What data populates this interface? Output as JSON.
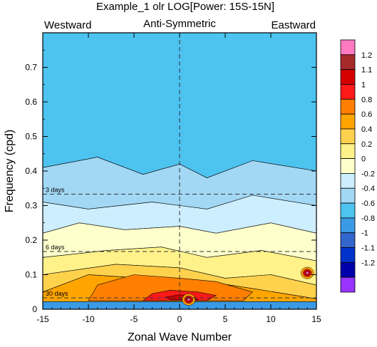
{
  "chart_data": {
    "type": "heatmap",
    "title": "Example_1 olr LOG[Power: 15S-15N]",
    "subtitle": "Anti-Symmetric",
    "left_label": "Westward",
    "right_label": "Eastward",
    "xlabel": "Zonal Wave Number",
    "ylabel": "Frequency (cpd)",
    "xlim": [
      -15,
      15
    ],
    "ylim": [
      0,
      0.8
    ],
    "x_ticks": [
      -15,
      -10,
      -5,
      0,
      5,
      10,
      15
    ],
    "y_ticks": [
      0,
      0.1,
      0.2,
      0.3,
      0.4,
      0.5,
      0.6,
      0.7
    ],
    "period_lines": [
      {
        "label": "3 days",
        "frequency": 0.333
      },
      {
        "label": "6 days",
        "frequency": 0.167
      },
      {
        "label": "30 days",
        "frequency": 0.033
      }
    ],
    "colorbar": {
      "levels": [
        1.2,
        1.1,
        1,
        0.8,
        0.6,
        0.4,
        0.2,
        0,
        -0.2,
        -0.4,
        -0.6,
        -0.8,
        -1,
        -1.1,
        -1.2
      ],
      "colors": [
        "#ff7ac0",
        "#a52a2a",
        "#d40000",
        "#ff1a1a",
        "#ff7f00",
        "#ffa500",
        "#ffd24d",
        "#fff28a",
        "#ffffcc",
        "#cdeeff",
        "#a3d8f5",
        "#4dc3f0",
        "#3a9ae6",
        "#3366cc",
        "#0033cc",
        "#0000aa",
        "#9933ff"
      ]
    },
    "regions": [
      {
        "value": -0.8,
        "points": [
          [
            -15,
            0.8
          ],
          [
            15,
            0.8
          ],
          [
            15,
            0.4
          ],
          [
            8,
            0.43
          ],
          [
            3,
            0.38
          ],
          [
            0,
            0.42
          ],
          [
            -4,
            0.39
          ],
          [
            -9,
            0.44
          ],
          [
            -15,
            0.41
          ]
        ]
      },
      {
        "value": -0.6,
        "points": [
          [
            -15,
            0.41
          ],
          [
            -9,
            0.44
          ],
          [
            -4,
            0.39
          ],
          [
            0,
            0.42
          ],
          [
            3,
            0.38
          ],
          [
            8,
            0.43
          ],
          [
            15,
            0.4
          ],
          [
            15,
            0.3
          ],
          [
            8,
            0.33
          ],
          [
            3,
            0.29
          ],
          [
            -3,
            0.31
          ],
          [
            -10,
            0.29
          ],
          [
            -15,
            0.31
          ]
        ]
      },
      {
        "value": -0.4,
        "points": [
          [
            -15,
            0.31
          ],
          [
            -10,
            0.29
          ],
          [
            -3,
            0.31
          ],
          [
            3,
            0.29
          ],
          [
            8,
            0.33
          ],
          [
            15,
            0.3
          ],
          [
            15,
            0.22
          ],
          [
            10,
            0.25
          ],
          [
            4,
            0.22
          ],
          [
            0,
            0.24
          ],
          [
            -6,
            0.23
          ],
          [
            -11,
            0.25
          ],
          [
            -15,
            0.22
          ]
        ]
      },
      {
        "value": -0.2,
        "points": [
          [
            -15,
            0.22
          ],
          [
            -11,
            0.25
          ],
          [
            -6,
            0.23
          ],
          [
            0,
            0.24
          ],
          [
            4,
            0.22
          ],
          [
            10,
            0.25
          ],
          [
            15,
            0.22
          ],
          [
            15,
            0.14
          ],
          [
            9,
            0.17
          ],
          [
            3,
            0.15
          ],
          [
            -2,
            0.18
          ],
          [
            -8,
            0.17
          ],
          [
            -15,
            0.15
          ]
        ]
      },
      {
        "value": 0,
        "points": [
          [
            -15,
            0.15
          ],
          [
            -8,
            0.17
          ],
          [
            -2,
            0.18
          ],
          [
            3,
            0.15
          ],
          [
            9,
            0.17
          ],
          [
            15,
            0.14
          ],
          [
            15,
            0.07
          ],
          [
            10,
            0.1
          ],
          [
            5,
            0.09
          ],
          [
            0,
            0.12
          ],
          [
            -7,
            0.13
          ],
          [
            -15,
            0.1
          ]
        ]
      },
      {
        "value": 0.2,
        "points": [
          [
            -15,
            0.1
          ],
          [
            -7,
            0.13
          ],
          [
            0,
            0.12
          ],
          [
            5,
            0.09
          ],
          [
            10,
            0.1
          ],
          [
            15,
            0.07
          ],
          [
            15,
            0.03
          ],
          [
            8,
            0.06
          ],
          [
            3,
            0.08
          ],
          [
            -4,
            0.09
          ],
          [
            -10,
            0.1
          ],
          [
            -15,
            0.05
          ]
        ]
      },
      {
        "value": 0.4,
        "points": [
          [
            -15,
            0.05
          ],
          [
            -10,
            0.1
          ],
          [
            -4,
            0.09
          ],
          [
            3,
            0.08
          ],
          [
            8,
            0.06
          ],
          [
            15,
            0.03
          ],
          [
            15,
            0.0
          ],
          [
            -15,
            0.0
          ]
        ]
      },
      {
        "value": 0.6,
        "points": [
          [
            -9,
            0.07
          ],
          [
            -5,
            0.1
          ],
          [
            0,
            0.09
          ],
          [
            4,
            0.08
          ],
          [
            8,
            0.05
          ],
          [
            7,
            0.025
          ],
          [
            -10,
            0.025
          ]
        ]
      },
      {
        "value": 0.8,
        "points": [
          [
            -3,
            0.045
          ],
          [
            -1,
            0.055
          ],
          [
            2,
            0.05
          ],
          [
            4,
            0.04
          ],
          [
            3,
            0.025
          ],
          [
            -4,
            0.025
          ]
        ]
      },
      {
        "value": 1,
        "points": [
          [
            -1.5,
            0.035
          ],
          [
            0,
            0.042
          ],
          [
            1.5,
            0.038
          ],
          [
            2,
            0.028
          ],
          [
            -1,
            0.028
          ]
        ]
      },
      {
        "value": -1,
        "points": [
          [
            -15,
            0.022
          ],
          [
            15,
            0.022
          ],
          [
            15,
            0.0
          ],
          [
            -15,
            0.0
          ]
        ]
      }
    ],
    "hotspots": [
      {
        "x": 14,
        "y": 0.105,
        "value": 1.2
      },
      {
        "x": 1,
        "y": 0.028,
        "value": 1.2
      }
    ]
  }
}
